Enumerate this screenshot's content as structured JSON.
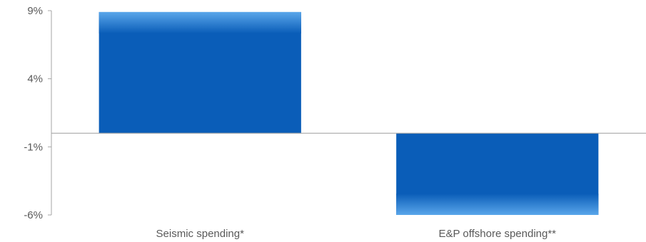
{
  "chart_data": {
    "type": "bar",
    "categories": [
      "Seismic spending*",
      "E&P offshore spending**"
    ],
    "values": [
      8.9,
      -6.0
    ],
    "yticks": [
      9,
      4,
      -1,
      -6
    ],
    "ytick_labels": [
      "9%",
      "4%",
      "-1%",
      "-6%"
    ],
    "ylim": [
      -6,
      9
    ],
    "grid": false,
    "legend": "none",
    "title": "",
    "xlabel": "",
    "ylabel": "",
    "colors": {
      "bar": "#0a5db8",
      "bar_highlight": "#5aa6ea",
      "axis": "#a6a6a6"
    }
  }
}
